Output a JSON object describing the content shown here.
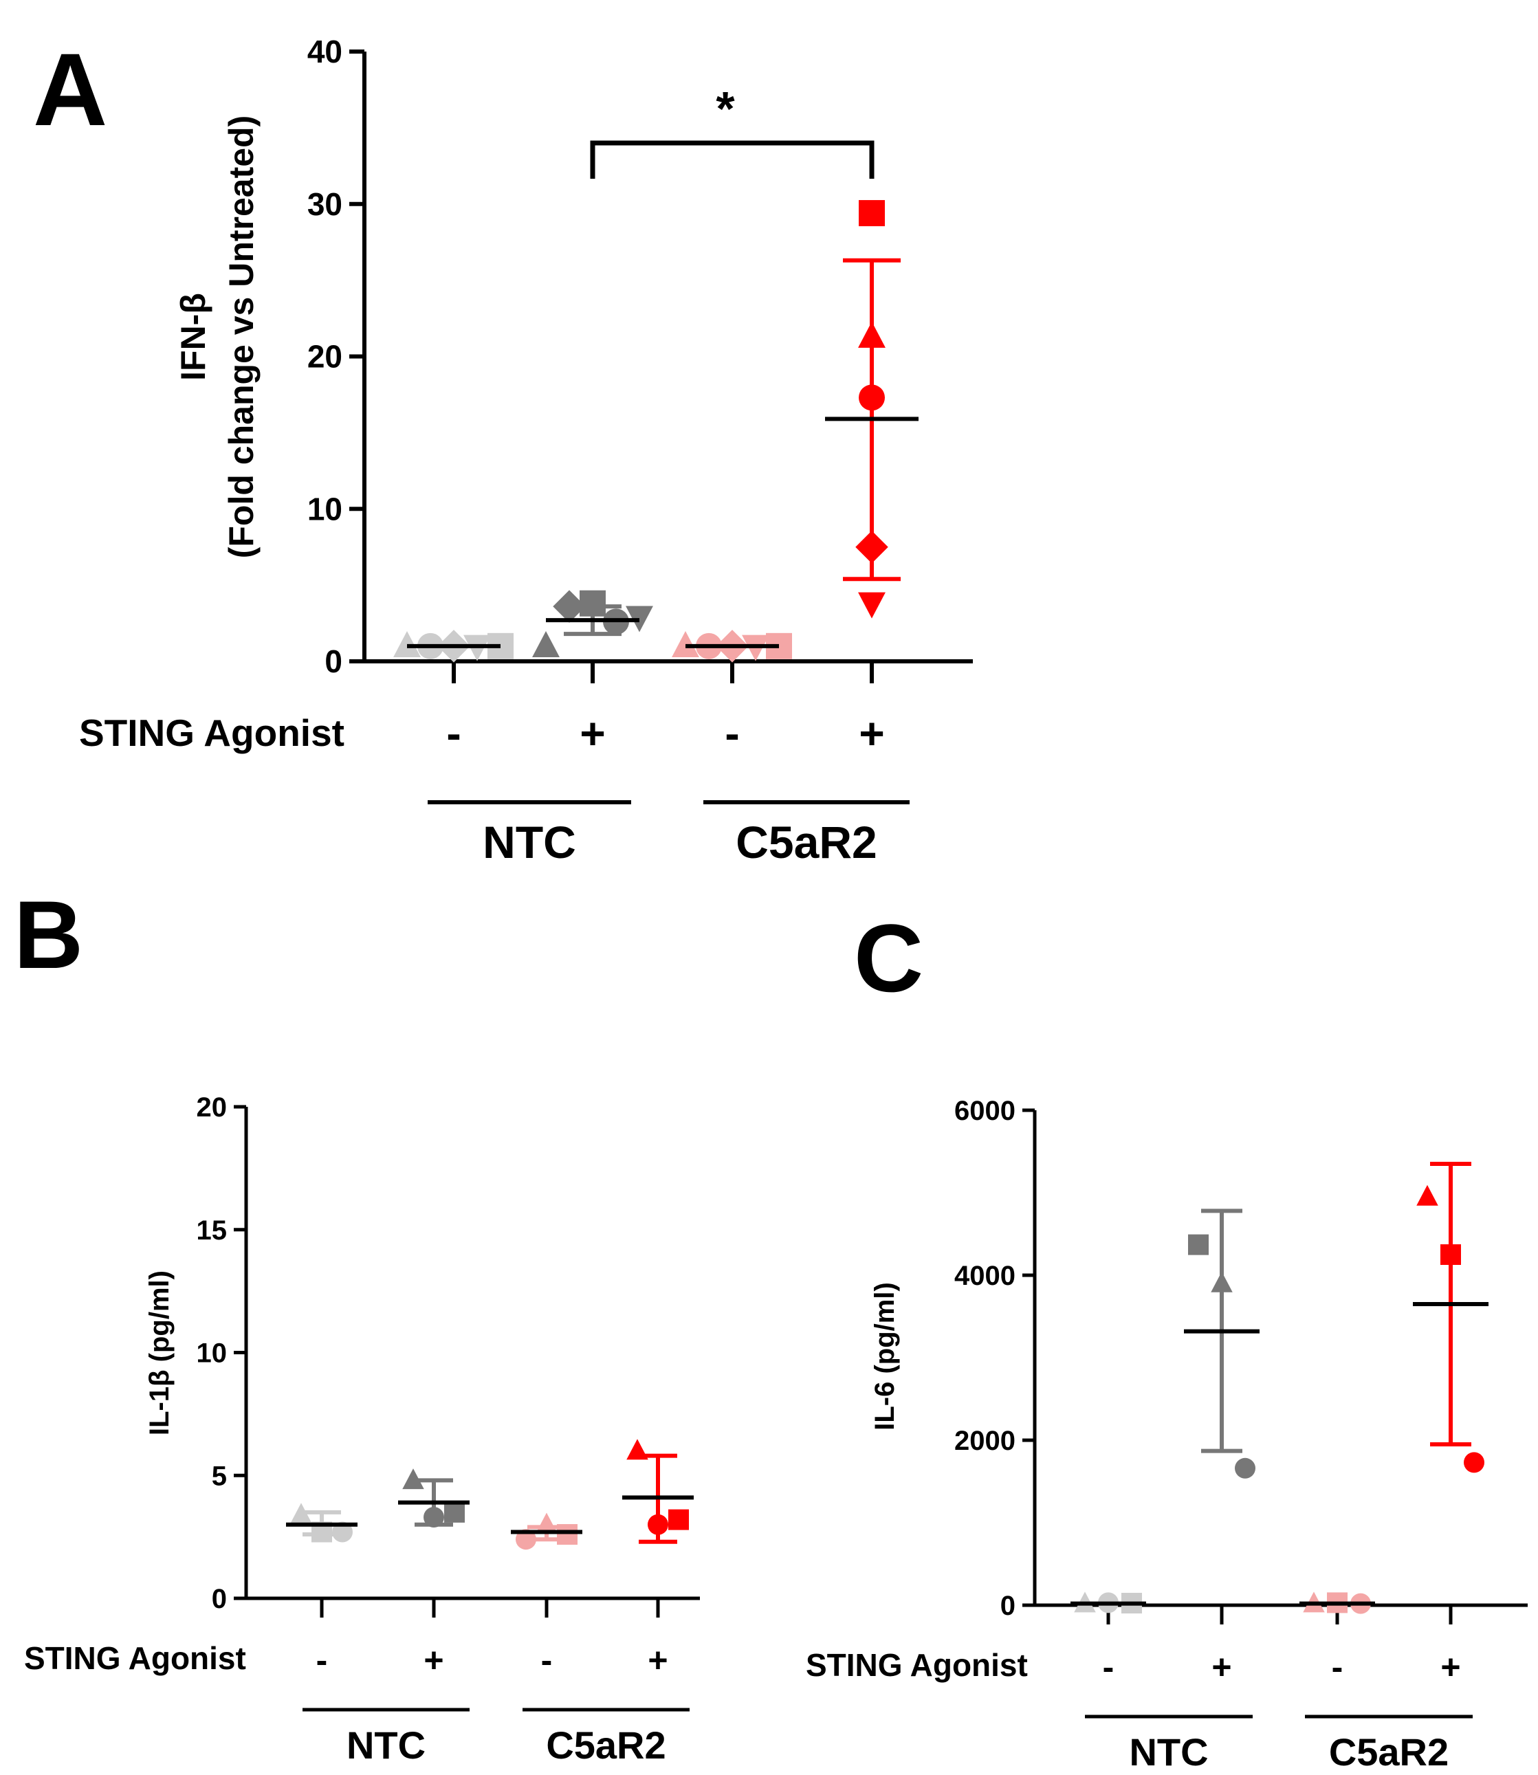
{
  "figure": {
    "panels": [
      {
        "id": "A",
        "letter": "A"
      },
      {
        "id": "B",
        "letter": "B"
      },
      {
        "id": "C",
        "letter": "C"
      }
    ]
  },
  "chart_data": [
    {
      "panel": "A",
      "type": "scatter",
      "title": "",
      "ylabel_line1": "IFN-β",
      "ylabel_line2": "(Fold change vs Untreated)",
      "xlabel": "",
      "ylim": [
        0,
        40
      ],
      "yticks": [
        0,
        10,
        20,
        30,
        40
      ],
      "row_label": "STING Agonist",
      "conditions": [
        "-",
        "+",
        "-",
        "+"
      ],
      "group_labels": [
        "NTC",
        "C5aR2"
      ],
      "significance": {
        "from_group": 1,
        "to_group": 3,
        "label": "*"
      },
      "groups": [
        {
          "name": "NTC -",
          "color": "#cccccc",
          "mean": 1.0,
          "sd": [
            1.0,
            1.0
          ],
          "points": [
            {
              "marker": "triangle",
              "y": 1.0
            },
            {
              "marker": "circle",
              "y": 1.0
            },
            {
              "marker": "diamond",
              "y": 1.0
            },
            {
              "marker": "triangle-down",
              "y": 1.0
            },
            {
              "marker": "square",
              "y": 1.0
            }
          ]
        },
        {
          "name": "NTC +",
          "color": "#777777",
          "mean": 2.7,
          "sd": [
            1.8,
            3.6
          ],
          "points": [
            {
              "marker": "triangle",
              "y": 1.0
            },
            {
              "marker": "diamond",
              "y": 3.6
            },
            {
              "marker": "square",
              "y": 3.8
            },
            {
              "marker": "circle",
              "y": 2.6
            },
            {
              "marker": "triangle-down",
              "y": 2.9
            }
          ]
        },
        {
          "name": "C5aR2 -",
          "color": "#f4a6a6",
          "mean": 1.0,
          "sd": [
            1.0,
            1.0
          ],
          "points": [
            {
              "marker": "triangle",
              "y": 1.0
            },
            {
              "marker": "circle",
              "y": 1.0
            },
            {
              "marker": "diamond",
              "y": 1.0
            },
            {
              "marker": "triangle-down",
              "y": 1.0
            },
            {
              "marker": "square",
              "y": 1.0
            }
          ]
        },
        {
          "name": "C5aR2 +",
          "color": "#ff0000",
          "mean": 15.9,
          "sd": [
            5.4,
            26.3
          ],
          "points": [
            {
              "marker": "square",
              "y": 29.4
            },
            {
              "marker": "triangle",
              "y": 21.3
            },
            {
              "marker": "circle",
              "y": 17.3
            },
            {
              "marker": "diamond",
              "y": 7.5
            },
            {
              "marker": "triangle-down",
              "y": 3.8
            }
          ]
        }
      ]
    },
    {
      "panel": "B",
      "type": "scatter",
      "title": "",
      "ylabel": "IL-1β (pg/ml)",
      "xlabel": "",
      "ylim": [
        0,
        20
      ],
      "yticks": [
        0,
        5,
        10,
        15,
        20
      ],
      "row_label": "STING Agonist",
      "conditions": [
        "-",
        "+",
        "-",
        "+"
      ],
      "group_labels": [
        "NTC",
        "C5aR2"
      ],
      "groups": [
        {
          "name": "NTC -",
          "color": "#cccccc",
          "mean": 3.0,
          "sd": [
            2.6,
            3.5
          ],
          "points": [
            {
              "marker": "triangle",
              "y": 3.4
            },
            {
              "marker": "square",
              "y": 2.7
            },
            {
              "marker": "circle",
              "y": 2.7
            }
          ]
        },
        {
          "name": "NTC +",
          "color": "#777777",
          "mean": 3.9,
          "sd": [
            3.0,
            4.8
          ],
          "points": [
            {
              "marker": "triangle",
              "y": 4.8
            },
            {
              "marker": "circle",
              "y": 3.3
            },
            {
              "marker": "square",
              "y": 3.5
            }
          ]
        },
        {
          "name": "C5aR2 -",
          "color": "#f4a6a6",
          "mean": 2.7,
          "sd": [
            2.4,
            2.9
          ],
          "points": [
            {
              "marker": "circle",
              "y": 2.4
            },
            {
              "marker": "triangle",
              "y": 3.0
            },
            {
              "marker": "square",
              "y": 2.6
            }
          ]
        },
        {
          "name": "C5aR2 +",
          "color": "#ff0000",
          "mean": 4.1,
          "sd": [
            2.3,
            5.8
          ],
          "points": [
            {
              "marker": "triangle",
              "y": 6.0
            },
            {
              "marker": "circle",
              "y": 3.0
            },
            {
              "marker": "square",
              "y": 3.2
            }
          ]
        }
      ]
    },
    {
      "panel": "C",
      "type": "scatter",
      "title": "",
      "ylabel": "IL-6 (pg/ml)",
      "xlabel": "",
      "ylim": [
        0,
        6000
      ],
      "yticks": [
        0,
        2000,
        4000,
        6000
      ],
      "row_label": "STING Agonist",
      "conditions": [
        "-",
        "+",
        "-",
        "+"
      ],
      "group_labels": [
        "NTC",
        "C5aR2"
      ],
      "groups": [
        {
          "name": "NTC -",
          "color": "#cccccc",
          "mean": 20,
          "sd": [
            20,
            20
          ],
          "points": [
            {
              "marker": "triangle",
              "y": 20
            },
            {
              "marker": "circle",
              "y": 30
            },
            {
              "marker": "square",
              "y": 25
            }
          ]
        },
        {
          "name": "NTC +",
          "color": "#777777",
          "mean": 3320,
          "sd": [
            1870,
            4780
          ],
          "points": [
            {
              "marker": "square",
              "y": 4370
            },
            {
              "marker": "triangle",
              "y": 3900
            },
            {
              "marker": "circle",
              "y": 1660
            }
          ]
        },
        {
          "name": "C5aR2 -",
          "color": "#f4a6a6",
          "mean": 20,
          "sd": [
            20,
            20
          ],
          "points": [
            {
              "marker": "triangle",
              "y": 20
            },
            {
              "marker": "square",
              "y": 30
            },
            {
              "marker": "circle",
              "y": 20
            }
          ]
        },
        {
          "name": "C5aR2 +",
          "color": "#ff0000",
          "mean": 3650,
          "sd": [
            1950,
            5350
          ],
          "points": [
            {
              "marker": "triangle",
              "y": 4950
            },
            {
              "marker": "square",
              "y": 4250
            },
            {
              "marker": "circle",
              "y": 1730
            }
          ]
        }
      ]
    }
  ]
}
